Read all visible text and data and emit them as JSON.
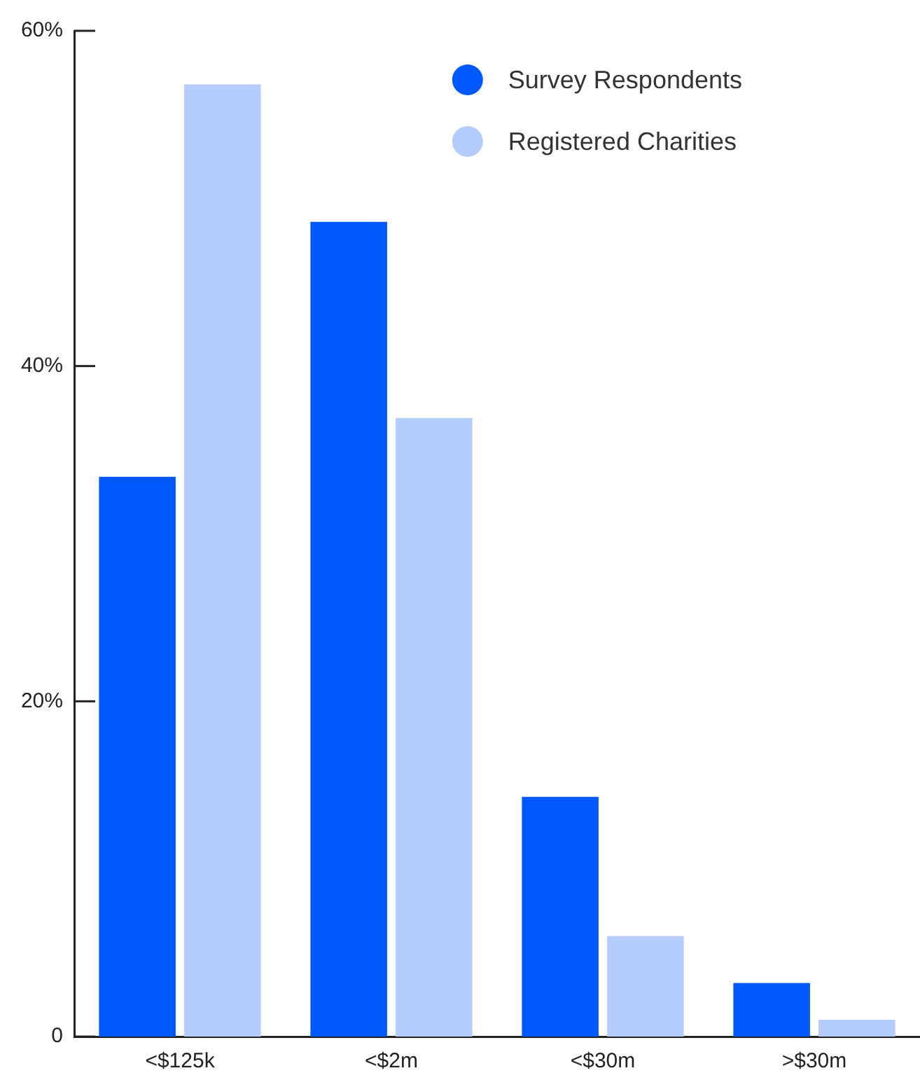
{
  "chart_data": {
    "type": "bar",
    "categories": [
      "<$125k",
      "<$2m",
      "<$30m",
      ">$30m"
    ],
    "series": [
      {
        "name": "Survey Respondents",
        "color": "#0059ff",
        "values": [
          33.4,
          48.6,
          14.3,
          3.2
        ]
      },
      {
        "name": "Registered Charities",
        "color": "#b4cdfc",
        "values": [
          56.8,
          36.9,
          6.0,
          1.0
        ]
      }
    ],
    "ylim": [
      0,
      60
    ],
    "yticks": [
      0,
      {
        "value": 20,
        "label": "20%"
      },
      {
        "value": 40,
        "label": "40%"
      },
      {
        "value": 60,
        "label": "60%"
      }
    ],
    "grid": false,
    "legend": "top right"
  }
}
